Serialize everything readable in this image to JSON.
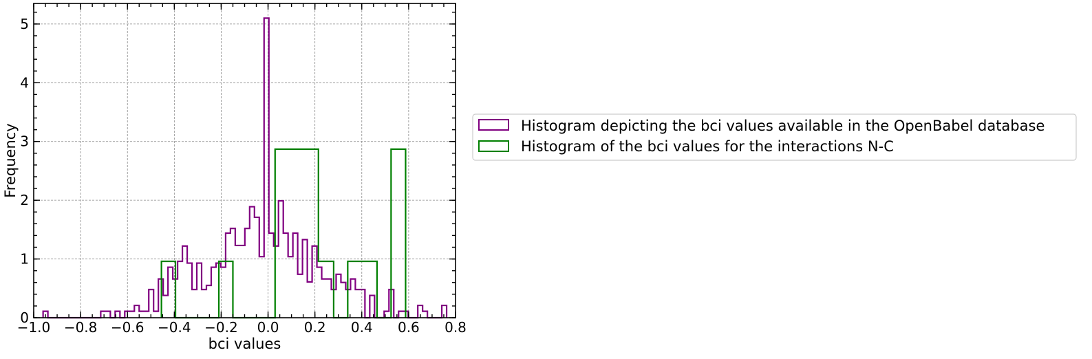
{
  "chart_data": {
    "type": "histogram",
    "xlabel": "bci values",
    "ylabel": "Frequency",
    "xlim": [
      -1.0,
      0.8
    ],
    "ylim": [
      0,
      5.35
    ],
    "xticks": [
      -1.0,
      -0.8,
      -0.6,
      -0.4,
      -0.2,
      0.0,
      0.2,
      0.4,
      0.6,
      0.8
    ],
    "xtick_labels": [
      "−1.0",
      "−0.8",
      "−0.6",
      "−0.4",
      "−0.2",
      "0.0",
      "0.2",
      "0.4",
      "0.6",
      "0.8"
    ],
    "yticks": [
      0,
      1,
      2,
      3,
      4,
      5
    ],
    "ytick_labels": [
      "0",
      "1",
      "2",
      "3",
      "4",
      "5"
    ],
    "grid": true,
    "legend_position": "right, outside the plot",
    "series": [
      {
        "name": "Histogram depicting the bci values available in the OpenBabel database",
        "color": "#800080",
        "x_start": -0.96,
        "bin_width": 0.0205,
        "values": [
          0.11,
          0,
          0,
          0,
          0,
          0,
          0,
          0,
          0,
          0,
          0,
          0,
          0.11,
          0.11,
          0,
          0.11,
          0,
          0.11,
          0.11,
          0.21,
          0.11,
          0.11,
          0.48,
          0.11,
          0.66,
          0.38,
          0.86,
          0.66,
          0.96,
          1.22,
          0.93,
          0.48,
          0.93,
          0.48,
          0.55,
          0.86,
          0.93,
          0.86,
          1.44,
          1.52,
          1.23,
          1.23,
          1.52,
          1.89,
          1.71,
          1.04,
          5.1,
          1.44,
          1.22,
          1.99,
          1.44,
          1.04,
          1.44,
          0.74,
          1.33,
          0.61,
          1.22,
          0.86,
          0.66,
          0.66,
          0.48,
          0.74,
          0.6,
          0.48,
          0.66,
          0.48,
          0.48,
          0,
          0.38,
          0,
          0,
          0.11,
          0.48,
          0,
          0.11,
          0.11,
          0,
          0,
          0.21,
          0.11,
          0,
          0,
          0,
          0.21
        ]
      },
      {
        "name": "Histogram of the bci values for the interactions N-C",
        "color": "#008000",
        "bins": [
          {
            "x0": -0.455,
            "x1": -0.395,
            "y": 0.96
          },
          {
            "x0": -0.395,
            "x1": -0.21,
            "y": 0
          },
          {
            "x0": -0.21,
            "x1": -0.15,
            "y": 0.96
          },
          {
            "x0": -0.15,
            "x1": 0.03,
            "y": 0
          },
          {
            "x0": 0.03,
            "x1": 0.215,
            "y": 2.87
          },
          {
            "x0": 0.215,
            "x1": 0.28,
            "y": 0.96
          },
          {
            "x0": 0.28,
            "x1": 0.34,
            "y": 0
          },
          {
            "x0": 0.34,
            "x1": 0.465,
            "y": 0.96
          },
          {
            "x0": 0.465,
            "x1": 0.525,
            "y": 0
          },
          {
            "x0": 0.525,
            "x1": 0.587,
            "y": 2.87
          }
        ]
      }
    ]
  }
}
